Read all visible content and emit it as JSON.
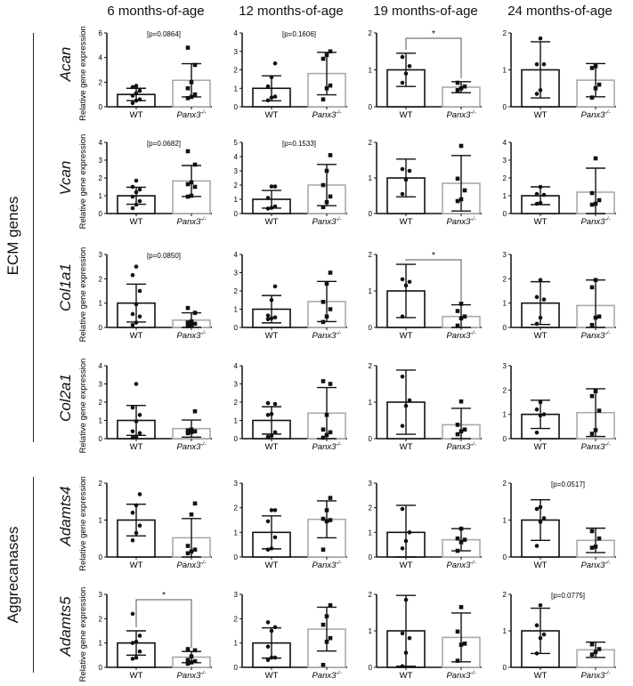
{
  "chart_data": {
    "type": "bar",
    "title": "",
    "figure_layout": "grid 6 rows x 4 columns; bar + scatter + mean±SD",
    "columns": [
      "6 months-of-age",
      "12 months-of-age",
      "19 months-of-age",
      "24 months-of-age"
    ],
    "groups": [
      {
        "label": "ECM genes",
        "genes": [
          "Acan",
          "Vcan",
          "Col1a1",
          "Col2a1"
        ]
      },
      {
        "label": "Aggrecanases",
        "genes": [
          "Adamts4",
          "Adamts5"
        ]
      }
    ],
    "ylabel": "Relative gene expression",
    "categories": [
      "WT",
      "Panx3-/-"
    ],
    "category_display": {
      "wt": "WT",
      "ko_base": "Panx3",
      "ko_sup": "-/-"
    },
    "colors": {
      "wt_bar": "#111111",
      "ko_bar": "#aaaaaa",
      "points": "#111111"
    },
    "panels": [
      {
        "gene": "Acan",
        "age": "6 months-of-age",
        "ymax": 6,
        "yticks": [
          0,
          2,
          4,
          6
        ],
        "annotation": "[p=0.0864]",
        "sig": "",
        "wt": {
          "mean": 1.0,
          "sd": 0.5,
          "points": [
            0.3,
            0.5,
            0.6,
            0.9,
            1.1,
            1.3,
            1.6,
            1.7
          ]
        },
        "ko": {
          "mean": 2.15,
          "sd": 1.35,
          "points": [
            0.7,
            0.8,
            1.0,
            1.5,
            2.0,
            3.4,
            4.8
          ]
        }
      },
      {
        "gene": "Acan",
        "age": "12 months-of-age",
        "ymax": 4,
        "yticks": [
          0,
          1,
          2,
          3,
          4
        ],
        "annotation": "[p=0.1606]",
        "sig": "",
        "wt": {
          "mean": 1.0,
          "sd": 0.68,
          "points": [
            0.35,
            0.5,
            0.55,
            1.1,
            1.6,
            2.35
          ]
        },
        "ko": {
          "mean": 1.8,
          "sd": 1.15,
          "points": [
            0.4,
            1.0,
            1.15,
            2.6,
            2.8,
            3.0
          ]
        }
      },
      {
        "gene": "Acan",
        "age": "19 months-of-age",
        "ymax": 2,
        "yticks": [
          0,
          1,
          2
        ],
        "annotation": "",
        "sig": "*",
        "wt": {
          "mean": 1.0,
          "sd": 0.45,
          "points": [
            0.65,
            0.9,
            1.1,
            1.35
          ]
        },
        "ko": {
          "mean": 0.53,
          "sd": 0.15,
          "points": [
            0.45,
            0.5,
            0.55,
            0.65
          ]
        }
      },
      {
        "gene": "Acan",
        "age": "24 months-of-age",
        "ymax": 2,
        "yticks": [
          0,
          1,
          2
        ],
        "annotation": "",
        "sig": "",
        "wt": {
          "mean": 1.0,
          "sd": 0.76,
          "points": [
            0.35,
            0.45,
            1.15,
            1.15,
            1.85
          ]
        },
        "ko": {
          "mean": 0.72,
          "sd": 0.45,
          "points": [
            0.25,
            0.5,
            0.6,
            1.05,
            1.1
          ]
        }
      },
      {
        "gene": "Vcan",
        "age": "6 months-of-age",
        "ymax": 4,
        "yticks": [
          0,
          1,
          2,
          3,
          4
        ],
        "annotation": "[p=0.0682]",
        "sig": "",
        "wt": {
          "mean": 1.0,
          "sd": 0.48,
          "points": [
            0.3,
            0.5,
            0.7,
            0.95,
            1.2,
            1.35,
            1.5,
            1.85
          ]
        },
        "ko": {
          "mean": 1.83,
          "sd": 0.87,
          "points": [
            0.95,
            1.0,
            1.5,
            1.65,
            1.75,
            2.75,
            3.5
          ]
        }
      },
      {
        "gene": "Vcan",
        "age": "12 months-of-age",
        "ymax": 5,
        "yticks": [
          0,
          1,
          2,
          3,
          4,
          5
        ],
        "annotation": "[p=0.1533]",
        "sig": "",
        "wt": {
          "mean": 1.0,
          "sd": 0.62,
          "points": [
            0.35,
            0.4,
            0.5,
            1.1,
            1.9,
            1.9
          ]
        },
        "ko": {
          "mean": 2.0,
          "sd": 1.45,
          "points": [
            0.45,
            0.8,
            1.2,
            2.0,
            3.0,
            4.1
          ]
        }
      },
      {
        "gene": "Vcan",
        "age": "19 months-of-age",
        "ymax": 2,
        "yticks": [
          0,
          1,
          2
        ],
        "annotation": "",
        "sig": "",
        "wt": {
          "mean": 1.0,
          "sd": 0.53,
          "points": [
            0.55,
            0.95,
            1.2,
            1.25
          ]
        },
        "ko": {
          "mean": 0.85,
          "sd": 0.78,
          "points": [
            0.35,
            0.4,
            0.65,
            0.98,
            1.9
          ]
        }
      },
      {
        "gene": "Vcan",
        "age": "24 months-of-age",
        "ymax": 4,
        "yticks": [
          0,
          1,
          2,
          3,
          4
        ],
        "annotation": "",
        "sig": "",
        "wt": {
          "mean": 1.0,
          "sd": 0.5,
          "points": [
            0.55,
            0.6,
            1.05,
            1.1,
            1.5
          ]
        },
        "ko": {
          "mean": 1.2,
          "sd": 1.35,
          "points": [
            0.5,
            0.55,
            0.75,
            1.15,
            3.1
          ]
        }
      },
      {
        "gene": "Col1a1",
        "age": "6 months-of-age",
        "ymax": 3,
        "yticks": [
          0,
          1,
          2,
          3
        ],
        "annotation": "[p=0.0850]",
        "sig": "",
        "wt": {
          "mean": 1.0,
          "sd": 0.78,
          "points": [
            0.1,
            0.2,
            0.45,
            0.55,
            0.95,
            1.5,
            2.15,
            2.5
          ]
        },
        "ko": {
          "mean": 0.3,
          "sd": 0.3,
          "points": [
            0.05,
            0.1,
            0.15,
            0.2,
            0.25,
            0.6,
            0.8
          ]
        }
      },
      {
        "gene": "Col1a1",
        "age": "12 months-of-age",
        "ymax": 4,
        "yticks": [
          0,
          1,
          2,
          3,
          4
        ],
        "annotation": "",
        "sig": "",
        "wt": {
          "mean": 1.0,
          "sd": 0.75,
          "points": [
            0.45,
            0.5,
            0.55,
            0.65,
            1.5,
            2.25
          ]
        },
        "ko": {
          "mean": 1.42,
          "sd": 1.1,
          "points": [
            0.3,
            0.6,
            1.0,
            1.4,
            2.4,
            3.0
          ]
        }
      },
      {
        "gene": "Col1a1",
        "age": "19 months-of-age",
        "ymax": 2,
        "yticks": [
          0,
          1,
          2
        ],
        "annotation": "",
        "sig": "*",
        "wt": {
          "mean": 1.0,
          "sd": 0.73,
          "points": [
            0.3,
            1.15,
            1.25,
            1.32
          ]
        },
        "ko": {
          "mean": 0.3,
          "sd": 0.32,
          "points": [
            0.05,
            0.25,
            0.3,
            0.45,
            0.65
          ]
        }
      },
      {
        "gene": "Col1a1",
        "age": "24 months-of-age",
        "ymax": 3,
        "yticks": [
          0,
          1,
          2,
          3
        ],
        "annotation": "",
        "sig": "",
        "wt": {
          "mean": 1.0,
          "sd": 0.88,
          "points": [
            0.15,
            0.4,
            1.15,
            1.25,
            1.95
          ]
        },
        "ko": {
          "mean": 0.9,
          "sd": 1.05,
          "points": [
            0.1,
            0.4,
            0.45,
            1.65,
            1.95
          ]
        }
      },
      {
        "gene": "Col2a1",
        "age": "6 months-of-age",
        "ymax": 4,
        "yticks": [
          0,
          1,
          2,
          3,
          4
        ],
        "annotation": "",
        "sig": "",
        "wt": {
          "mean": 1.0,
          "sd": 0.82,
          "points": [
            0.05,
            0.1,
            0.3,
            0.4,
            0.95,
            1.3,
            1.7,
            3.0
          ]
        },
        "ko": {
          "mean": 0.55,
          "sd": 0.47,
          "points": [
            0.3,
            0.35,
            0.4,
            0.45,
            0.5,
            1.5
          ]
        }
      },
      {
        "gene": "Col2a1",
        "age": "12 months-of-age",
        "ymax": 4,
        "yticks": [
          0,
          1,
          2,
          3,
          4
        ],
        "annotation": "",
        "sig": "",
        "wt": {
          "mean": 1.0,
          "sd": 0.75,
          "points": [
            0.1,
            0.15,
            0.35,
            1.3,
            1.35,
            1.9,
            1.95
          ]
        },
        "ko": {
          "mean": 1.4,
          "sd": 1.4,
          "points": [
            0.05,
            0.2,
            0.35,
            0.5,
            1.3,
            3.0,
            3.15
          ]
        }
      },
      {
        "gene": "Col2a1",
        "age": "19 months-of-age",
        "ymax": 2,
        "yticks": [
          0,
          1,
          2
        ],
        "annotation": "",
        "sig": "",
        "wt": {
          "mean": 1.0,
          "sd": 0.88,
          "points": [
            0.35,
            0.9,
            1.05,
            1.7
          ]
        },
        "ko": {
          "mean": 0.38,
          "sd": 0.45,
          "points": [
            0.12,
            0.2,
            0.25,
            0.38,
            1.02
          ]
        }
      },
      {
        "gene": "Col2a1",
        "age": "24 months-of-age",
        "ymax": 3,
        "yticks": [
          0,
          1,
          2,
          3
        ],
        "annotation": "",
        "sig": "",
        "wt": {
          "mean": 1.0,
          "sd": 0.58,
          "points": [
            0.25,
            0.95,
            1.0,
            1.2,
            1.5
          ]
        },
        "ko": {
          "mean": 1.07,
          "sd": 0.98,
          "points": [
            0.2,
            0.35,
            1.15,
            1.75,
            1.95
          ]
        }
      },
      {
        "gene": "Adamts4",
        "age": "6 months-of-age",
        "ymax": 2,
        "yticks": [
          0,
          1,
          2
        ],
        "annotation": "",
        "sig": "",
        "wt": {
          "mean": 1.0,
          "sd": 0.43,
          "points": [
            0.45,
            0.65,
            0.85,
            1.2,
            1.4,
            1.7
          ]
        },
        "ko": {
          "mean": 0.52,
          "sd": 0.52,
          "points": [
            0.1,
            0.15,
            0.2,
            0.3,
            1.15,
            1.45
          ]
        }
      },
      {
        "gene": "Adamts4",
        "age": "12 months-of-age",
        "ymax": 3,
        "yticks": [
          0,
          1,
          2,
          3
        ],
        "annotation": "",
        "sig": "",
        "wt": {
          "mean": 1.0,
          "sd": 0.67,
          "points": [
            0.3,
            0.35,
            0.8,
            1.45,
            1.9,
            1.9
          ]
        },
        "ko": {
          "mean": 1.53,
          "sd": 0.75,
          "points": [
            0.3,
            1.45,
            1.5,
            1.55,
            1.9,
            2.4
          ]
        }
      },
      {
        "gene": "Adamts4",
        "age": "19 months-of-age",
        "ymax": 3,
        "yticks": [
          0,
          1,
          2,
          3
        ],
        "annotation": "",
        "sig": "",
        "wt": {
          "mean": 1.0,
          "sd": 1.1,
          "points": [
            0.35,
            0.65,
            1.0,
            1.95
          ]
        },
        "ko": {
          "mean": 0.7,
          "sd": 0.45,
          "points": [
            0.25,
            0.6,
            0.7,
            0.75,
            1.15
          ]
        }
      },
      {
        "gene": "Adamts4",
        "age": "24 months-of-age",
        "ymax": 2,
        "yticks": [
          0,
          1,
          2
        ],
        "annotation": "[p=0.0517]",
        "sig": "",
        "wt": {
          "mean": 1.0,
          "sd": 0.55,
          "points": [
            0.3,
            0.95,
            1.05,
            1.3,
            1.35
          ]
        },
        "ko": {
          "mean": 0.45,
          "sd": 0.33,
          "points": [
            0.25,
            0.28,
            0.5,
            0.7
          ]
        }
      },
      {
        "gene": "Adamts5",
        "age": "6 months-of-age",
        "ymax": 3,
        "yticks": [
          0,
          1,
          2,
          3
        ],
        "annotation": "",
        "sig": "*",
        "wt": {
          "mean": 1.0,
          "sd": 0.5,
          "points": [
            0.35,
            0.4,
            0.65,
            1.0,
            1.05,
            1.3,
            2.2
          ]
        },
        "ko": {
          "mean": 0.42,
          "sd": 0.23,
          "points": [
            0.15,
            0.2,
            0.25,
            0.3,
            0.45,
            0.7,
            0.75
          ]
        }
      },
      {
        "gene": "Adamts5",
        "age": "12 months-of-age",
        "ymax": 3,
        "yticks": [
          0,
          1,
          2,
          3
        ],
        "annotation": "",
        "sig": "",
        "wt": {
          "mean": 1.0,
          "sd": 0.62,
          "points": [
            0.3,
            0.4,
            0.4,
            0.85,
            1.5,
            1.65,
            1.85
          ]
        },
        "ko": {
          "mean": 1.57,
          "sd": 0.9,
          "points": [
            0.1,
            1.05,
            1.2,
            1.75,
            2.1,
            2.55
          ]
        }
      },
      {
        "gene": "Adamts5",
        "age": "19 months-of-age",
        "ymax": 2,
        "yticks": [
          0,
          1,
          2
        ],
        "annotation": "",
        "sig": "",
        "wt": {
          "mean": 1.0,
          "sd": 0.97,
          "points": [
            0.03,
            0.4,
            0.8,
            0.93,
            1.85
          ]
        },
        "ko": {
          "mean": 0.82,
          "sd": 0.67,
          "points": [
            0.18,
            0.62,
            0.65,
            0.98,
            1.65
          ]
        }
      },
      {
        "gene": "Adamts5",
        "age": "24 months-of-age",
        "ymax": 2,
        "yticks": [
          0,
          1,
          2
        ],
        "annotation": "[p=0.0775]",
        "sig": "",
        "wt": {
          "mean": 1.0,
          "sd": 0.62,
          "points": [
            0.38,
            0.8,
            0.9,
            1.15,
            1.7
          ]
        },
        "ko": {
          "mean": 0.48,
          "sd": 0.21,
          "points": [
            0.35,
            0.42,
            0.5,
            0.63
          ]
        }
      }
    ]
  }
}
